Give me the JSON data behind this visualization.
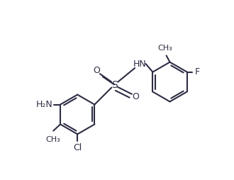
{
  "bg_color": "#ffffff",
  "line_color": "#2d2d44",
  "line_width": 1.5,
  "font_size": 9,
  "figsize": [
    3.3,
    2.54
  ],
  "dpi": 100,
  "xlim": [
    0,
    10
  ],
  "ylim": [
    0,
    7.7
  ]
}
